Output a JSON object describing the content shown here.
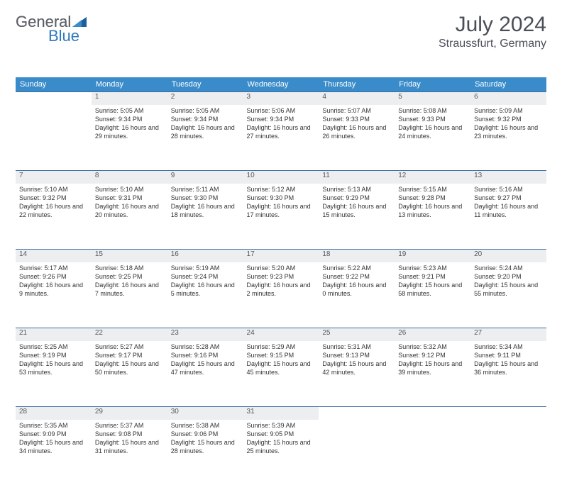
{
  "brand": {
    "general": "General",
    "blue": "Blue"
  },
  "title": "July 2024",
  "location": "Straussfurt, Germany",
  "colors": {
    "header_bg": "#3a8bc9",
    "header_text": "#ffffff",
    "daynum_bg": "#eceef0",
    "rule": "#3d6ea3",
    "text": "#333333",
    "title_text": "#4a4f57"
  },
  "weekdays": [
    "Sunday",
    "Monday",
    "Tuesday",
    "Wednesday",
    "Thursday",
    "Friday",
    "Saturday"
  ],
  "weeks": [
    {
      "days": [
        null,
        {
          "n": "1",
          "sr": "Sunrise: 5:05 AM",
          "ss": "Sunset: 9:34 PM",
          "dl": "Daylight: 16 hours and 29 minutes."
        },
        {
          "n": "2",
          "sr": "Sunrise: 5:05 AM",
          "ss": "Sunset: 9:34 PM",
          "dl": "Daylight: 16 hours and 28 minutes."
        },
        {
          "n": "3",
          "sr": "Sunrise: 5:06 AM",
          "ss": "Sunset: 9:34 PM",
          "dl": "Daylight: 16 hours and 27 minutes."
        },
        {
          "n": "4",
          "sr": "Sunrise: 5:07 AM",
          "ss": "Sunset: 9:33 PM",
          "dl": "Daylight: 16 hours and 26 minutes."
        },
        {
          "n": "5",
          "sr": "Sunrise: 5:08 AM",
          "ss": "Sunset: 9:33 PM",
          "dl": "Daylight: 16 hours and 24 minutes."
        },
        {
          "n": "6",
          "sr": "Sunrise: 5:09 AM",
          "ss": "Sunset: 9:32 PM",
          "dl": "Daylight: 16 hours and 23 minutes."
        }
      ]
    },
    {
      "days": [
        {
          "n": "7",
          "sr": "Sunrise: 5:10 AM",
          "ss": "Sunset: 9:32 PM",
          "dl": "Daylight: 16 hours and 22 minutes."
        },
        {
          "n": "8",
          "sr": "Sunrise: 5:10 AM",
          "ss": "Sunset: 9:31 PM",
          "dl": "Daylight: 16 hours and 20 minutes."
        },
        {
          "n": "9",
          "sr": "Sunrise: 5:11 AM",
          "ss": "Sunset: 9:30 PM",
          "dl": "Daylight: 16 hours and 18 minutes."
        },
        {
          "n": "10",
          "sr": "Sunrise: 5:12 AM",
          "ss": "Sunset: 9:30 PM",
          "dl": "Daylight: 16 hours and 17 minutes."
        },
        {
          "n": "11",
          "sr": "Sunrise: 5:13 AM",
          "ss": "Sunset: 9:29 PM",
          "dl": "Daylight: 16 hours and 15 minutes."
        },
        {
          "n": "12",
          "sr": "Sunrise: 5:15 AM",
          "ss": "Sunset: 9:28 PM",
          "dl": "Daylight: 16 hours and 13 minutes."
        },
        {
          "n": "13",
          "sr": "Sunrise: 5:16 AM",
          "ss": "Sunset: 9:27 PM",
          "dl": "Daylight: 16 hours and 11 minutes."
        }
      ]
    },
    {
      "days": [
        {
          "n": "14",
          "sr": "Sunrise: 5:17 AM",
          "ss": "Sunset: 9:26 PM",
          "dl": "Daylight: 16 hours and 9 minutes."
        },
        {
          "n": "15",
          "sr": "Sunrise: 5:18 AM",
          "ss": "Sunset: 9:25 PM",
          "dl": "Daylight: 16 hours and 7 minutes."
        },
        {
          "n": "16",
          "sr": "Sunrise: 5:19 AM",
          "ss": "Sunset: 9:24 PM",
          "dl": "Daylight: 16 hours and 5 minutes."
        },
        {
          "n": "17",
          "sr": "Sunrise: 5:20 AM",
          "ss": "Sunset: 9:23 PM",
          "dl": "Daylight: 16 hours and 2 minutes."
        },
        {
          "n": "18",
          "sr": "Sunrise: 5:22 AM",
          "ss": "Sunset: 9:22 PM",
          "dl": "Daylight: 16 hours and 0 minutes."
        },
        {
          "n": "19",
          "sr": "Sunrise: 5:23 AM",
          "ss": "Sunset: 9:21 PM",
          "dl": "Daylight: 15 hours and 58 minutes."
        },
        {
          "n": "20",
          "sr": "Sunrise: 5:24 AM",
          "ss": "Sunset: 9:20 PM",
          "dl": "Daylight: 15 hours and 55 minutes."
        }
      ]
    },
    {
      "days": [
        {
          "n": "21",
          "sr": "Sunrise: 5:25 AM",
          "ss": "Sunset: 9:19 PM",
          "dl": "Daylight: 15 hours and 53 minutes."
        },
        {
          "n": "22",
          "sr": "Sunrise: 5:27 AM",
          "ss": "Sunset: 9:17 PM",
          "dl": "Daylight: 15 hours and 50 minutes."
        },
        {
          "n": "23",
          "sr": "Sunrise: 5:28 AM",
          "ss": "Sunset: 9:16 PM",
          "dl": "Daylight: 15 hours and 47 minutes."
        },
        {
          "n": "24",
          "sr": "Sunrise: 5:29 AM",
          "ss": "Sunset: 9:15 PM",
          "dl": "Daylight: 15 hours and 45 minutes."
        },
        {
          "n": "25",
          "sr": "Sunrise: 5:31 AM",
          "ss": "Sunset: 9:13 PM",
          "dl": "Daylight: 15 hours and 42 minutes."
        },
        {
          "n": "26",
          "sr": "Sunrise: 5:32 AM",
          "ss": "Sunset: 9:12 PM",
          "dl": "Daylight: 15 hours and 39 minutes."
        },
        {
          "n": "27",
          "sr": "Sunrise: 5:34 AM",
          "ss": "Sunset: 9:11 PM",
          "dl": "Daylight: 15 hours and 36 minutes."
        }
      ]
    },
    {
      "days": [
        {
          "n": "28",
          "sr": "Sunrise: 5:35 AM",
          "ss": "Sunset: 9:09 PM",
          "dl": "Daylight: 15 hours and 34 minutes."
        },
        {
          "n": "29",
          "sr": "Sunrise: 5:37 AM",
          "ss": "Sunset: 9:08 PM",
          "dl": "Daylight: 15 hours and 31 minutes."
        },
        {
          "n": "30",
          "sr": "Sunrise: 5:38 AM",
          "ss": "Sunset: 9:06 PM",
          "dl": "Daylight: 15 hours and 28 minutes."
        },
        {
          "n": "31",
          "sr": "Sunrise: 5:39 AM",
          "ss": "Sunset: 9:05 PM",
          "dl": "Daylight: 15 hours and 25 minutes."
        },
        null,
        null,
        null
      ]
    }
  ]
}
